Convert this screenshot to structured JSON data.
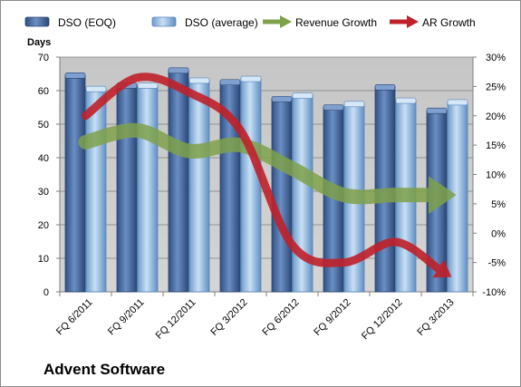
{
  "chart_data": {
    "type": "bar",
    "title": "",
    "categories": [
      "FQ 6/2011",
      "FQ 9/2011",
      "FQ 12/2011",
      "FQ 3/2012",
      "FQ 6/2012",
      "FQ 9/2012",
      "FQ 12/2012",
      "FQ 3/2013"
    ],
    "ylabel": "Days",
    "ylim": [
      0,
      70
    ],
    "yticks": [
      0,
      10,
      20,
      30,
      40,
      50,
      60,
      70
    ],
    "y2lim": [
      -10,
      30
    ],
    "y2ticks": [
      "-10%",
      "-5%",
      "0%",
      "5%",
      "10%",
      "15%",
      "20%",
      "25%",
      "30%"
    ],
    "y2tick_values": [
      -10,
      -5,
      0,
      5,
      10,
      15,
      20,
      25,
      30
    ],
    "series": [
      {
        "name": "DSO (EOQ)",
        "kind": "bar",
        "axis": "left",
        "color": "#4a6fa5",
        "values": [
          64.5,
          61.5,
          66,
          62.5,
          57.5,
          55,
          61,
          54
        ]
      },
      {
        "name": "DSO (average)",
        "kind": "bar",
        "axis": "left",
        "color": "#8fb8e0",
        "values": [
          60.5,
          61.5,
          63,
          63.5,
          58.5,
          56,
          57,
          56.5
        ]
      },
      {
        "name": "Revenue Growth",
        "kind": "arrow-line",
        "axis": "right",
        "color": "#7fa14a",
        "values": [
          15.5,
          17.5,
          14,
          15,
          11,
          6.5,
          6.5,
          6.5
        ]
      },
      {
        "name": "AR Growth",
        "kind": "arrow-line",
        "axis": "right",
        "color": "#c0202a",
        "values": [
          20,
          26.5,
          24,
          17.5,
          -2,
          -5,
          -1.5,
          -7
        ]
      }
    ],
    "legend_position": "top",
    "grid": true
  },
  "footer": {
    "company": "Advent Software"
  }
}
